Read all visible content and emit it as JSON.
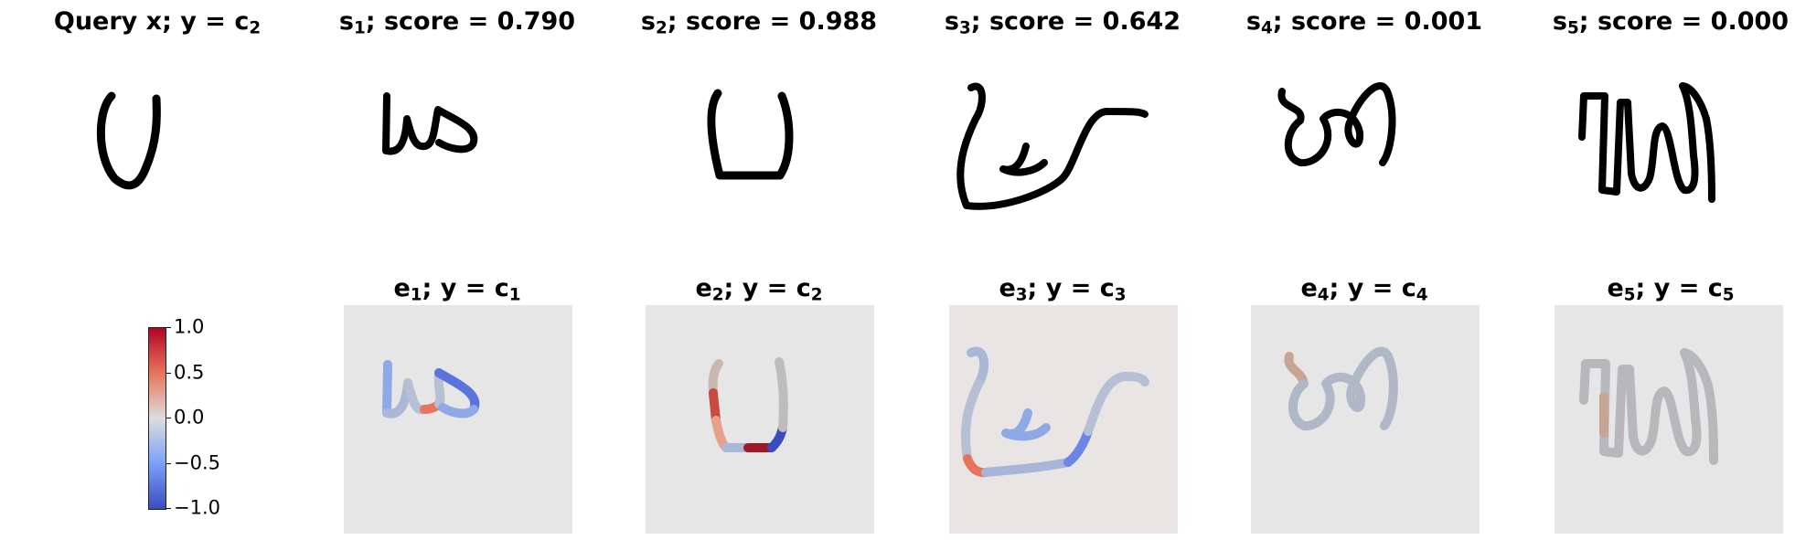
{
  "top_row": [
    {
      "prefix": "Query x; ",
      "sub": "",
      "mid": "y = c",
      "sub2": "2",
      "suffix": ""
    },
    {
      "prefix": "s",
      "sub": "1",
      "mid": "; score = 0.790",
      "sub2": "",
      "suffix": ""
    },
    {
      "prefix": "s",
      "sub": "2",
      "mid": "; score = 0.988",
      "sub2": "",
      "suffix": ""
    },
    {
      "prefix": "s",
      "sub": "3",
      "mid": "; score = 0.642",
      "sub2": "",
      "suffix": ""
    },
    {
      "prefix": "s",
      "sub": "4",
      "mid": "; score = 0.001",
      "sub2": "",
      "suffix": ""
    },
    {
      "prefix": "s",
      "sub": "5",
      "mid": "; score = 0.000",
      "sub2": "",
      "suffix": ""
    }
  ],
  "bottom_row": [
    {
      "prefix": "e",
      "sub": "1",
      "mid": "; y = c",
      "sub2": "1"
    },
    {
      "prefix": "e",
      "sub": "2",
      "mid": "; y = c",
      "sub2": "2"
    },
    {
      "prefix": "e",
      "sub": "3",
      "mid": "; y = c",
      "sub2": "3"
    },
    {
      "prefix": "e",
      "sub": "4",
      "mid": "; y = c",
      "sub2": "4"
    },
    {
      "prefix": "e",
      "sub": "5",
      "mid": "; y = c",
      "sub2": "5"
    }
  ],
  "colorbar": {
    "ticks": [
      "1.0",
      "0.5",
      "0.0",
      "−0.5",
      "−1.0"
    ],
    "colormap": "coolwarm",
    "colors": {
      "high": "#b40426",
      "mid": "#dddddd",
      "low": "#3b4cc0"
    }
  },
  "panel_background": "#e6e6e6"
}
